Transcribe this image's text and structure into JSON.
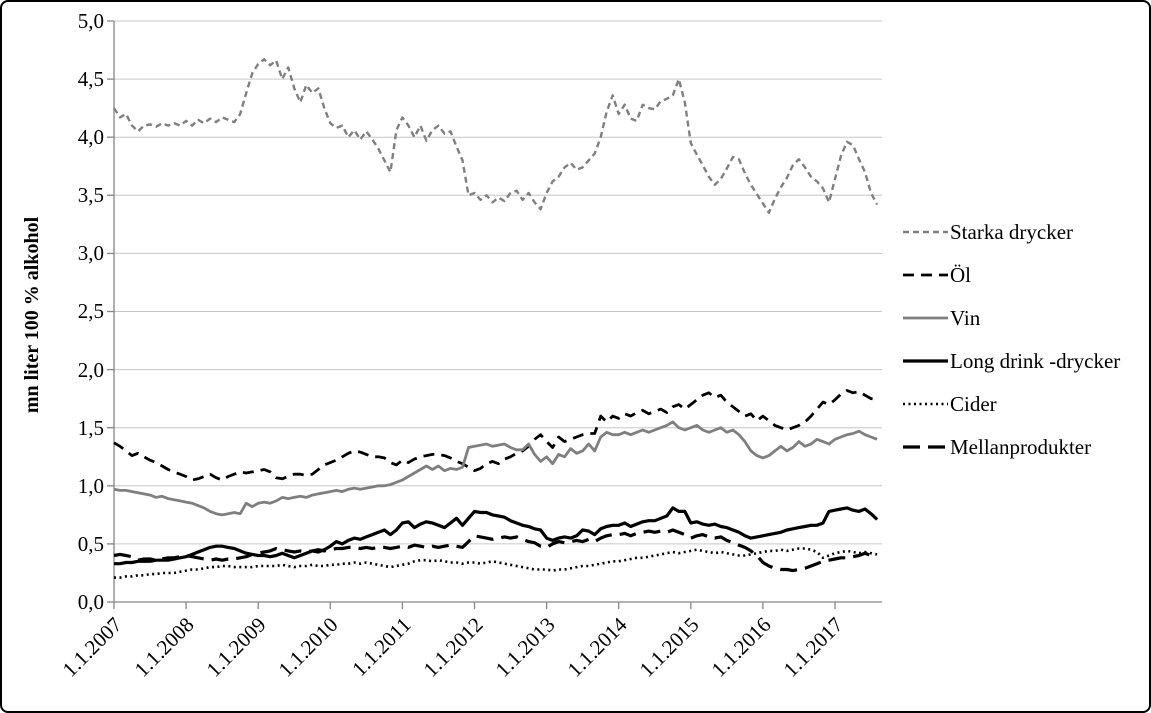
{
  "figure": {
    "background": "#ffffff",
    "border_color": "#000000",
    "gridline_color": "#c6c6c6",
    "axis_color": "#868686"
  },
  "y_axis": {
    "title": "mn liter 100 % alkohol",
    "tick_labels": [
      "5,0",
      "4,5",
      "4,0",
      "3,5",
      "3,0",
      "2,5",
      "2,0",
      "1,5",
      "1,0",
      "0,5",
      "0,0"
    ],
    "min": 0,
    "max": 5,
    "step": 0.5
  },
  "x_axis": {
    "tick_labels": [
      "1.1.2007",
      "1.1.2008",
      "1.1.2009",
      "1.1.2010",
      "1.1.2011",
      "1.1.2012",
      "1.1.2013",
      "1.1.2014",
      "1.1.2015",
      "1.1.2016",
      "1.1.2017"
    ]
  },
  "legend": {
    "position": "right"
  },
  "chart_data": {
    "type": "line",
    "title": "",
    "xlabel": "",
    "ylabel": "mn liter 100 % alkohol",
    "ylim": [
      0,
      5
    ],
    "y_step": 0.5,
    "grid": true,
    "legend_position": "right",
    "x_unit": "month",
    "x_start_label": "1.1.2007",
    "x_end_label": "8.2017",
    "points_per_year": 12,
    "x_tick_labels": [
      "1.1.2007",
      "1.1.2008",
      "1.1.2009",
      "1.1.2010",
      "1.1.2011",
      "1.1.2012",
      "1.1.2013",
      "1.1.2014",
      "1.1.2015",
      "1.1.2016",
      "1.1.2017"
    ],
    "series": [
      {
        "name": "Starka drycker",
        "color": "#7f7f7f",
        "style": "dashed",
        "dash": "6,4",
        "width": 2.4,
        "values": [
          4.25,
          4.17,
          4.2,
          4.1,
          4.05,
          4.1,
          4.11,
          4.09,
          4.12,
          4.1,
          4.12,
          4.1,
          4.14,
          4.1,
          4.15,
          4.12,
          4.16,
          4.13,
          4.17,
          4.15,
          4.13,
          4.2,
          4.38,
          4.55,
          4.63,
          4.67,
          4.62,
          4.66,
          4.5,
          4.6,
          4.42,
          4.3,
          4.45,
          4.38,
          4.42,
          4.25,
          4.12,
          4.08,
          4.1,
          4.0,
          4.06,
          3.98,
          4.05,
          3.98,
          3.9,
          3.8,
          3.7,
          4.06,
          4.17,
          4.1,
          4.0,
          4.1,
          3.97,
          4.06,
          4.1,
          4.03,
          4.05,
          3.92,
          3.8,
          3.5,
          3.52,
          3.46,
          3.5,
          3.44,
          3.48,
          3.45,
          3.52,
          3.54,
          3.46,
          3.52,
          3.44,
          3.38,
          3.52,
          3.62,
          3.66,
          3.74,
          3.78,
          3.72,
          3.74,
          3.8,
          3.86,
          4.0,
          4.22,
          4.36,
          4.2,
          4.28,
          4.16,
          4.14,
          4.28,
          4.25,
          4.24,
          4.31,
          4.33,
          4.36,
          4.5,
          4.3,
          3.95,
          3.85,
          3.76,
          3.66,
          3.59,
          3.64,
          3.73,
          3.83,
          3.81,
          3.69,
          3.59,
          3.51,
          3.43,
          3.35,
          3.47,
          3.57,
          3.65,
          3.76,
          3.81,
          3.74,
          3.66,
          3.62,
          3.56,
          3.44,
          3.64,
          3.84,
          3.96,
          3.93,
          3.81,
          3.7,
          3.52,
          3.42
        ]
      },
      {
        "name": "Öl",
        "color": "#000000",
        "style": "dashed",
        "dash": "11,7",
        "width": 2.8,
        "values": [
          1.37,
          1.34,
          1.3,
          1.26,
          1.28,
          1.25,
          1.22,
          1.2,
          1.17,
          1.14,
          1.12,
          1.1,
          1.08,
          1.05,
          1.06,
          1.08,
          1.1,
          1.07,
          1.05,
          1.08,
          1.1,
          1.12,
          1.11,
          1.12,
          1.13,
          1.14,
          1.12,
          1.07,
          1.06,
          1.08,
          1.1,
          1.1,
          1.09,
          1.1,
          1.14,
          1.18,
          1.2,
          1.22,
          1.25,
          1.28,
          1.3,
          1.29,
          1.27,
          1.25,
          1.25,
          1.24,
          1.2,
          1.18,
          1.22,
          1.2,
          1.23,
          1.25,
          1.26,
          1.27,
          1.27,
          1.26,
          1.24,
          1.21,
          1.19,
          1.16,
          1.13,
          1.15,
          1.19,
          1.21,
          1.19,
          1.23,
          1.25,
          1.28,
          1.3,
          1.34,
          1.4,
          1.44,
          1.38,
          1.33,
          1.42,
          1.38,
          1.4,
          1.42,
          1.44,
          1.45,
          1.45,
          1.6,
          1.55,
          1.6,
          1.58,
          1.62,
          1.6,
          1.63,
          1.65,
          1.62,
          1.64,
          1.66,
          1.63,
          1.68,
          1.7,
          1.66,
          1.7,
          1.74,
          1.78,
          1.8,
          1.76,
          1.78,
          1.72,
          1.68,
          1.64,
          1.6,
          1.62,
          1.56,
          1.6,
          1.56,
          1.52,
          1.5,
          1.48,
          1.5,
          1.52,
          1.55,
          1.6,
          1.66,
          1.72,
          1.7,
          1.74,
          1.79,
          1.82,
          1.8,
          1.81,
          1.78,
          1.75,
          1.74
        ]
      },
      {
        "name": "Vin",
        "color": "#7f7f7f",
        "style": "solid",
        "dash": "none",
        "width": 2.8,
        "values": [
          0.97,
          0.96,
          0.96,
          0.95,
          0.94,
          0.93,
          0.92,
          0.9,
          0.91,
          0.89,
          0.88,
          0.87,
          0.86,
          0.85,
          0.83,
          0.81,
          0.78,
          0.76,
          0.75,
          0.76,
          0.77,
          0.76,
          0.85,
          0.82,
          0.85,
          0.86,
          0.85,
          0.87,
          0.9,
          0.89,
          0.9,
          0.91,
          0.9,
          0.92,
          0.93,
          0.94,
          0.95,
          0.96,
          0.95,
          0.97,
          0.98,
          0.97,
          0.98,
          0.99,
          1.0,
          1.0,
          1.01,
          1.03,
          1.05,
          1.08,
          1.11,
          1.14,
          1.17,
          1.14,
          1.17,
          1.13,
          1.15,
          1.14,
          1.16,
          1.33,
          1.34,
          1.35,
          1.36,
          1.34,
          1.35,
          1.36,
          1.33,
          1.31,
          1.31,
          1.36,
          1.27,
          1.21,
          1.25,
          1.19,
          1.27,
          1.25,
          1.32,
          1.28,
          1.3,
          1.36,
          1.3,
          1.42,
          1.46,
          1.44,
          1.44,
          1.46,
          1.44,
          1.46,
          1.48,
          1.46,
          1.48,
          1.5,
          1.52,
          1.55,
          1.5,
          1.48,
          1.5,
          1.52,
          1.48,
          1.46,
          1.48,
          1.5,
          1.46,
          1.48,
          1.44,
          1.38,
          1.3,
          1.26,
          1.24,
          1.26,
          1.3,
          1.34,
          1.3,
          1.33,
          1.38,
          1.34,
          1.36,
          1.4,
          1.38,
          1.36,
          1.4,
          1.42,
          1.44,
          1.45,
          1.47,
          1.44,
          1.42,
          1.4
        ]
      },
      {
        "name": "Long drink -drycker",
        "color": "#000000",
        "style": "solid",
        "dash": "none",
        "width": 3.2,
        "values": [
          0.33,
          0.33,
          0.34,
          0.34,
          0.35,
          0.35,
          0.35,
          0.36,
          0.36,
          0.36,
          0.37,
          0.38,
          0.39,
          0.41,
          0.43,
          0.45,
          0.47,
          0.48,
          0.48,
          0.47,
          0.46,
          0.44,
          0.42,
          0.41,
          0.4,
          0.4,
          0.39,
          0.4,
          0.42,
          0.4,
          0.38,
          0.4,
          0.42,
          0.44,
          0.43,
          0.45,
          0.48,
          0.52,
          0.5,
          0.53,
          0.55,
          0.54,
          0.56,
          0.58,
          0.6,
          0.62,
          0.58,
          0.62,
          0.68,
          0.69,
          0.64,
          0.67,
          0.69,
          0.68,
          0.66,
          0.64,
          0.68,
          0.72,
          0.66,
          0.72,
          0.78,
          0.77,
          0.77,
          0.75,
          0.74,
          0.73,
          0.7,
          0.68,
          0.66,
          0.65,
          0.63,
          0.62,
          0.55,
          0.53,
          0.55,
          0.56,
          0.55,
          0.57,
          0.62,
          0.61,
          0.58,
          0.63,
          0.65,
          0.66,
          0.66,
          0.68,
          0.65,
          0.67,
          0.69,
          0.7,
          0.7,
          0.72,
          0.74,
          0.81,
          0.78,
          0.78,
          0.68,
          0.69,
          0.67,
          0.66,
          0.67,
          0.65,
          0.64,
          0.62,
          0.6,
          0.57,
          0.55,
          0.56,
          0.57,
          0.58,
          0.59,
          0.6,
          0.62,
          0.63,
          0.64,
          0.65,
          0.66,
          0.66,
          0.68,
          0.78,
          0.79,
          0.8,
          0.81,
          0.79,
          0.78,
          0.8,
          0.76,
          0.71
        ]
      },
      {
        "name": "Cider",
        "color": "#000000",
        "style": "dotted",
        "dash": "2,3.5",
        "width": 2.6,
        "values": [
          0.21,
          0.21,
          0.22,
          0.22,
          0.23,
          0.23,
          0.24,
          0.24,
          0.25,
          0.25,
          0.25,
          0.26,
          0.27,
          0.28,
          0.28,
          0.29,
          0.3,
          0.3,
          0.31,
          0.31,
          0.3,
          0.3,
          0.3,
          0.3,
          0.31,
          0.31,
          0.31,
          0.31,
          0.32,
          0.31,
          0.3,
          0.31,
          0.31,
          0.32,
          0.31,
          0.31,
          0.32,
          0.32,
          0.33,
          0.33,
          0.34,
          0.33,
          0.34,
          0.33,
          0.32,
          0.31,
          0.3,
          0.31,
          0.32,
          0.33,
          0.35,
          0.36,
          0.36,
          0.35,
          0.36,
          0.35,
          0.34,
          0.34,
          0.33,
          0.34,
          0.34,
          0.33,
          0.34,
          0.35,
          0.34,
          0.33,
          0.32,
          0.31,
          0.3,
          0.29,
          0.28,
          0.28,
          0.28,
          0.27,
          0.28,
          0.28,
          0.29,
          0.3,
          0.31,
          0.31,
          0.32,
          0.33,
          0.34,
          0.35,
          0.35,
          0.36,
          0.37,
          0.38,
          0.38,
          0.39,
          0.4,
          0.41,
          0.42,
          0.43,
          0.42,
          0.43,
          0.44,
          0.45,
          0.44,
          0.43,
          0.42,
          0.43,
          0.42,
          0.41,
          0.4,
          0.4,
          0.41,
          0.42,
          0.43,
          0.44,
          0.44,
          0.45,
          0.44,
          0.45,
          0.46,
          0.46,
          0.45,
          0.43,
          0.38,
          0.4,
          0.42,
          0.43,
          0.44,
          0.43,
          0.42,
          0.43,
          0.42,
          0.41
        ]
      },
      {
        "name": "Mellanprodukter",
        "color": "#000000",
        "style": "long-dash",
        "dash": "17,8",
        "width": 3.2,
        "values": [
          0.4,
          0.41,
          0.4,
          0.39,
          0.36,
          0.37,
          0.37,
          0.36,
          0.37,
          0.38,
          0.38,
          0.39,
          0.4,
          0.39,
          0.38,
          0.37,
          0.36,
          0.37,
          0.36,
          0.37,
          0.37,
          0.38,
          0.39,
          0.41,
          0.42,
          0.43,
          0.44,
          0.46,
          0.45,
          0.44,
          0.43,
          0.44,
          0.43,
          0.44,
          0.45,
          0.44,
          0.45,
          0.46,
          0.46,
          0.47,
          0.47,
          0.46,
          0.47,
          0.46,
          0.47,
          0.47,
          0.46,
          0.47,
          0.48,
          0.47,
          0.49,
          0.48,
          0.47,
          0.48,
          0.47,
          0.48,
          0.49,
          0.48,
          0.47,
          0.52,
          0.57,
          0.56,
          0.55,
          0.54,
          0.55,
          0.56,
          0.55,
          0.56,
          0.54,
          0.52,
          0.51,
          0.48,
          0.47,
          0.5,
          0.52,
          0.51,
          0.52,
          0.53,
          0.52,
          0.54,
          0.52,
          0.55,
          0.57,
          0.58,
          0.58,
          0.59,
          0.57,
          0.59,
          0.6,
          0.61,
          0.6,
          0.61,
          0.6,
          0.62,
          0.6,
          0.58,
          0.55,
          0.57,
          0.58,
          0.56,
          0.55,
          0.56,
          0.53,
          0.51,
          0.49,
          0.47,
          0.44,
          0.4,
          0.34,
          0.31,
          0.29,
          0.28,
          0.28,
          0.27,
          0.28,
          0.29,
          0.31,
          0.33,
          0.35,
          0.36,
          0.37,
          0.38,
          0.38,
          0.39,
          0.4,
          0.42,
          0.4,
          0.39
        ]
      }
    ]
  }
}
